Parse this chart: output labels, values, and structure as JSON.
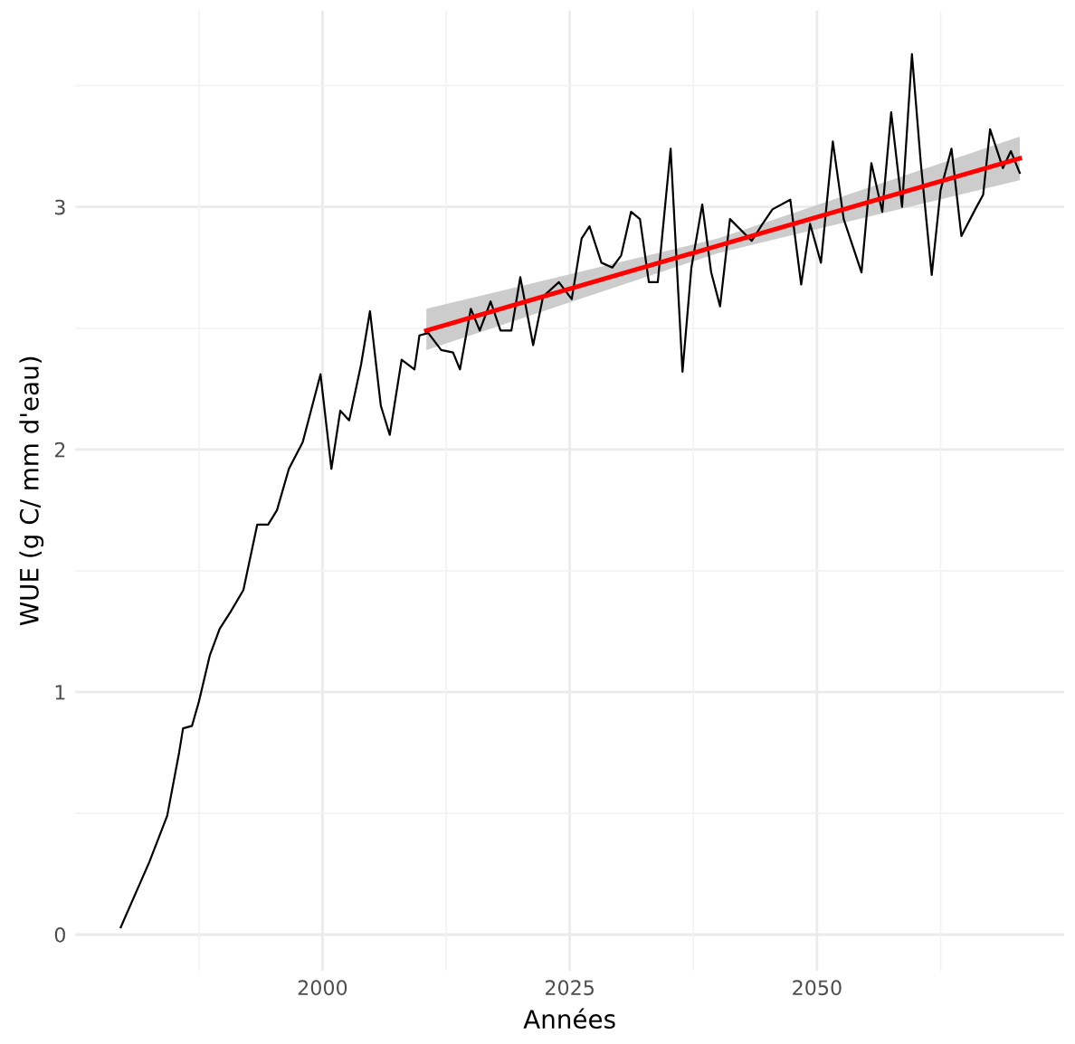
{
  "chart_data": {
    "type": "line",
    "xlabel": "Années",
    "ylabel": "WUE (g C/ mm d'eau)",
    "xlim": [
      1975,
      2075
    ],
    "ylim": [
      -0.15,
      3.81
    ],
    "xticks": [
      2000,
      2025,
      2050
    ],
    "yticks": [
      0,
      1,
      2,
      3
    ],
    "grid": true,
    "legend": false,
    "series": [
      {
        "color": "#000000",
        "x": [
          1979.6,
          1982.5,
          1984.3,
          1985.5,
          1985.9,
          1986.8,
          1987.5,
          1988.6,
          1989.6,
          1990.7,
          1992,
          1993.4,
          1994.5,
          1995.4,
          1996.6,
          1998,
          1999.8,
          2000.9,
          2001.8,
          2002.7,
          2003.9,
          2004.8,
          2005.9,
          2006.8,
          2008,
          2009.3,
          2009.8,
          2010.7,
          2012,
          2013.2,
          2013.9,
          2015,
          2015.9,
          2017,
          2018,
          2019.1,
          2020,
          2021.3,
          2022.3,
          2023.9,
          2025.2,
          2026.2,
          2027,
          2028.2,
          2029.3,
          2030.2,
          2031.2,
          2032.1,
          2033,
          2033.9,
          2035.2,
          2036.4,
          2037.3,
          2038.4,
          2039.3,
          2040.2,
          2041.2,
          2043.4,
          2044.5,
          2045.5,
          2047.3,
          2048.4,
          2049.3,
          2050.4,
          2051.6,
          2052.7,
          2054.5,
          2055.5,
          2056.6,
          2057.5,
          2058.6,
          2059.6,
          2060.5,
          2061.6,
          2062.5,
          2063.6,
          2064.6,
          2066,
          2066.8,
          2067.5,
          2068.8,
          2069.6,
          2070.5
        ],
        "values": [
          0.03,
          0.3,
          0.49,
          0.75,
          0.85,
          0.86,
          0.96,
          1.15,
          1.26,
          1.33,
          1.42,
          1.69,
          1.69,
          1.75,
          1.92,
          2.03,
          2.31,
          1.92,
          2.16,
          2.12,
          2.35,
          2.57,
          2.18,
          2.06,
          2.37,
          2.33,
          2.47,
          2.48,
          2.41,
          2.4,
          2.33,
          2.58,
          2.49,
          2.61,
          2.49,
          2.49,
          2.71,
          2.43,
          2.63,
          2.69,
          2.62,
          2.87,
          2.92,
          2.77,
          2.75,
          2.8,
          2.98,
          2.95,
          2.69,
          2.69,
          3.24,
          2.32,
          2.75,
          3.01,
          2.73,
          2.59,
          2.95,
          2.86,
          2.93,
          2.99,
          3.03,
          2.68,
          2.93,
          2.77,
          3.27,
          2.95,
          2.73,
          3.18,
          2.98,
          3.39,
          3.0,
          3.63,
          3.18,
          2.72,
          3.07,
          3.24,
          2.88,
          2.99,
          3.05,
          3.32,
          3.16,
          3.23,
          3.14
        ]
      },
      {
        "color": "#ff0000",
        "x": [
          2010.5,
          2040,
          2070.5
        ],
        "values": [
          2.49,
          2.84,
          3.2
        ],
        "lower": [
          2.41,
          2.81,
          3.11
        ],
        "upper": [
          2.58,
          2.87,
          3.29
        ]
      }
    ]
  }
}
